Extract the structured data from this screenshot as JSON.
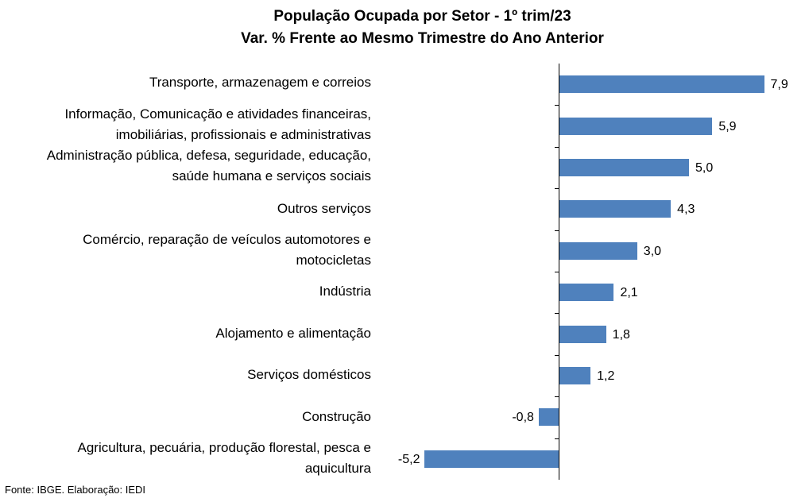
{
  "chart_data": {
    "type": "bar",
    "orientation": "horizontal",
    "title": "População Ocupada por Setor - 1º trim/23",
    "subtitle": "Var. % Frente ao Mesmo Trimestre do Ano Anterior",
    "categories": [
      [
        "Transporte, armazenagem e correios"
      ],
      [
        "Informação, Comunicação e atividades financeiras,",
        "imobiliárias, profissionais e administrativas"
      ],
      [
        "Administração pública, defesa, seguridade, educação,",
        "saúde humana e serviços sociais"
      ],
      [
        "Outros serviços"
      ],
      [
        "Comércio, reparação de veículos automotores e",
        "motocicletas"
      ],
      [
        "Indústria"
      ],
      [
        "Alojamento e alimentação"
      ],
      [
        "Serviços domésticos"
      ],
      [
        "Construção"
      ],
      [
        "Agricultura, pecuária, produção florestal, pesca e",
        "aquicultura"
      ]
    ],
    "values": [
      7.9,
      5.9,
      5.0,
      4.3,
      3.0,
      2.1,
      1.8,
      1.2,
      -0.8,
      -5.2
    ],
    "value_labels": [
      "7,9",
      "5,9",
      "5,0",
      "4,3",
      "3,0",
      "2,1",
      "1,8",
      "1,2",
      "-0,8",
      "-5,2"
    ],
    "bar_color": "#4f81bd",
    "grid": false,
    "legend": "none"
  },
  "source": "Fonte: IBGE. Elaboração: IEDI"
}
